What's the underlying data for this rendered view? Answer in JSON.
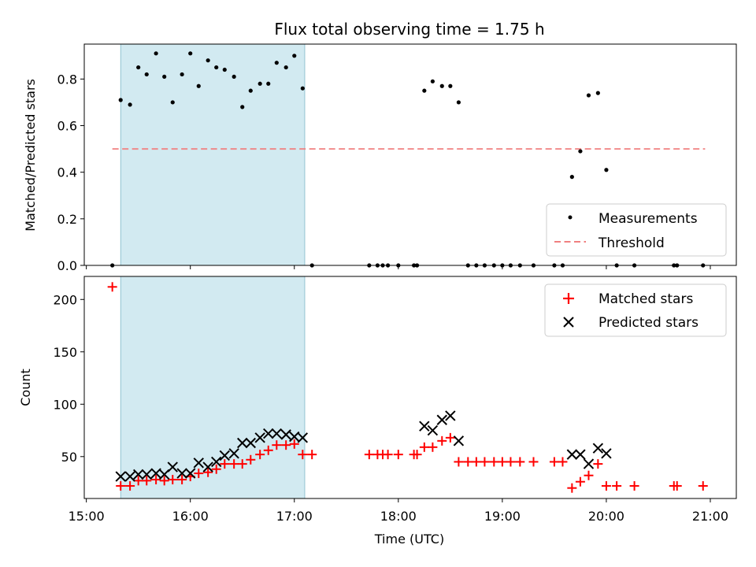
{
  "chart_data": [
    {
      "type": "scatter",
      "title": "Flux total observing time = 1.75 h",
      "xlabel": "",
      "ylabel": "Matched/Predicted stars",
      "xlim_hours": [
        14.98,
        21.25
      ],
      "ylim": [
        0,
        0.95
      ],
      "yticks": [
        0.0,
        0.2,
        0.4,
        0.6,
        0.8
      ],
      "ytick_labels": [
        "0.0",
        "0.2",
        "0.4",
        "0.6",
        "0.8"
      ],
      "shaded_span_hours": [
        15.33,
        17.1
      ],
      "shade_color": "#add8e6",
      "threshold": {
        "value": 0.5,
        "x_from_hours": 15.25,
        "x_to_hours": 20.95,
        "color": "#f08080"
      },
      "legend": {
        "position": "lower-right",
        "entries": [
          "Measurements",
          "Threshold"
        ]
      },
      "series": [
        {
          "name": "Measurements",
          "color": "#000000",
          "points": [
            [
              15.25,
              0.0
            ],
            [
              15.33,
              0.71
            ],
            [
              15.42,
              0.69
            ],
            [
              15.5,
              0.85
            ],
            [
              15.58,
              0.82
            ],
            [
              15.67,
              0.91
            ],
            [
              15.75,
              0.81
            ],
            [
              15.83,
              0.7
            ],
            [
              15.92,
              0.82
            ],
            [
              16.0,
              0.91
            ],
            [
              16.08,
              0.77
            ],
            [
              16.17,
              0.88
            ],
            [
              16.25,
              0.85
            ],
            [
              16.33,
              0.84
            ],
            [
              16.42,
              0.81
            ],
            [
              16.5,
              0.68
            ],
            [
              16.58,
              0.75
            ],
            [
              16.67,
              0.78
            ],
            [
              16.75,
              0.78
            ],
            [
              16.83,
              0.87
            ],
            [
              16.92,
              0.85
            ],
            [
              17.0,
              0.9
            ],
            [
              17.08,
              0.76
            ],
            [
              17.17,
              0.0
            ],
            [
              17.72,
              0.0
            ],
            [
              17.8,
              0.0
            ],
            [
              17.85,
              0.0
            ],
            [
              17.9,
              0.0
            ],
            [
              18.0,
              0.0
            ],
            [
              18.15,
              0.0
            ],
            [
              18.18,
              0.0
            ],
            [
              18.25,
              0.75
            ],
            [
              18.33,
              0.79
            ],
            [
              18.42,
              0.77
            ],
            [
              18.5,
              0.77
            ],
            [
              18.58,
              0.7
            ],
            [
              18.67,
              0.0
            ],
            [
              18.75,
              0.0
            ],
            [
              18.83,
              0.0
            ],
            [
              18.92,
              0.0
            ],
            [
              19.0,
              0.0
            ],
            [
              19.08,
              0.0
            ],
            [
              19.17,
              0.0
            ],
            [
              19.3,
              0.0
            ],
            [
              19.5,
              0.0
            ],
            [
              19.58,
              0.0
            ],
            [
              19.67,
              0.38
            ],
            [
              19.75,
              0.49
            ],
            [
              19.83,
              0.73
            ],
            [
              19.92,
              0.74
            ],
            [
              20.0,
              0.41
            ],
            [
              20.1,
              0.0
            ],
            [
              20.27,
              0.0
            ],
            [
              20.65,
              0.0
            ],
            [
              20.68,
              0.0
            ],
            [
              20.93,
              0.0
            ]
          ]
        }
      ]
    },
    {
      "type": "scatter",
      "title": "",
      "xlabel": "Time (UTC)",
      "ylabel": "Count",
      "xlim_hours": [
        14.98,
        21.25
      ],
      "ylim": [
        10,
        222
      ],
      "yticks": [
        50,
        100,
        150,
        200
      ],
      "ytick_labels": [
        "50",
        "100",
        "150",
        "200"
      ],
      "xticks_hours": [
        15,
        16,
        17,
        18,
        19,
        20,
        21
      ],
      "xtick_labels": [
        "15:00",
        "16:00",
        "17:00",
        "18:00",
        "19:00",
        "20:00",
        "21:00"
      ],
      "shaded_span_hours": [
        15.33,
        17.1
      ],
      "legend": {
        "position": "top-right",
        "entries": [
          "Matched stars",
          "Predicted stars"
        ]
      },
      "series": [
        {
          "name": "Matched stars",
          "marker": "plus",
          "color": "#ff0000",
          "points": [
            [
              15.25,
              212
            ],
            [
              15.33,
              22
            ],
            [
              15.42,
              22
            ],
            [
              15.5,
              27
            ],
            [
              15.58,
              27
            ],
            [
              15.67,
              28
            ],
            [
              15.75,
              27
            ],
            [
              15.83,
              28
            ],
            [
              15.92,
              28
            ],
            [
              16.0,
              31
            ],
            [
              16.08,
              34
            ],
            [
              16.17,
              35
            ],
            [
              16.25,
              38
            ],
            [
              16.33,
              43
            ],
            [
              16.42,
              43
            ],
            [
              16.5,
              43
            ],
            [
              16.58,
              47
            ],
            [
              16.67,
              52
            ],
            [
              16.75,
              56
            ],
            [
              16.83,
              61
            ],
            [
              16.92,
              61
            ],
            [
              17.0,
              62
            ],
            [
              17.08,
              52
            ],
            [
              17.17,
              52
            ],
            [
              17.72,
              52
            ],
            [
              17.8,
              52
            ],
            [
              17.85,
              52
            ],
            [
              17.9,
              52
            ],
            [
              18.0,
              52
            ],
            [
              18.15,
              52
            ],
            [
              18.18,
              52
            ],
            [
              18.25,
              59
            ],
            [
              18.33,
              59
            ],
            [
              18.42,
              65
            ],
            [
              18.5,
              68
            ],
            [
              18.58,
              45
            ],
            [
              18.67,
              45
            ],
            [
              18.75,
              45
            ],
            [
              18.83,
              45
            ],
            [
              18.92,
              45
            ],
            [
              19.0,
              45
            ],
            [
              19.08,
              45
            ],
            [
              19.17,
              45
            ],
            [
              19.3,
              45
            ],
            [
              19.5,
              45
            ],
            [
              19.58,
              45
            ],
            [
              19.67,
              20
            ],
            [
              19.75,
              26
            ],
            [
              19.83,
              32
            ],
            [
              19.92,
              43
            ],
            [
              20.0,
              22
            ],
            [
              20.1,
              22
            ],
            [
              20.27,
              22
            ],
            [
              20.65,
              22
            ],
            [
              20.68,
              22
            ],
            [
              20.93,
              22
            ]
          ]
        },
        {
          "name": "Predicted stars",
          "marker": "x",
          "color": "#000000",
          "points": [
            [
              15.33,
              31
            ],
            [
              15.42,
              31
            ],
            [
              15.5,
              33
            ],
            [
              15.58,
              33
            ],
            [
              15.67,
              34
            ],
            [
              15.75,
              33
            ],
            [
              15.83,
              40
            ],
            [
              15.92,
              34
            ],
            [
              16.0,
              34
            ],
            [
              16.08,
              44
            ],
            [
              16.17,
              40
            ],
            [
              16.25,
              45
            ],
            [
              16.33,
              51
            ],
            [
              16.42,
              53
            ],
            [
              16.5,
              63
            ],
            [
              16.58,
              63
            ],
            [
              16.67,
              68
            ],
            [
              16.75,
              72
            ],
            [
              16.83,
              72
            ],
            [
              16.92,
              71
            ],
            [
              17.0,
              69
            ],
            [
              17.08,
              68
            ],
            [
              18.25,
              79
            ],
            [
              18.33,
              75
            ],
            [
              18.42,
              85
            ],
            [
              18.5,
              89
            ],
            [
              18.58,
              65
            ],
            [
              19.67,
              52
            ],
            [
              19.75,
              52
            ],
            [
              19.83,
              43
            ],
            [
              19.92,
              58
            ],
            [
              20.0,
              53
            ]
          ]
        }
      ]
    }
  ]
}
